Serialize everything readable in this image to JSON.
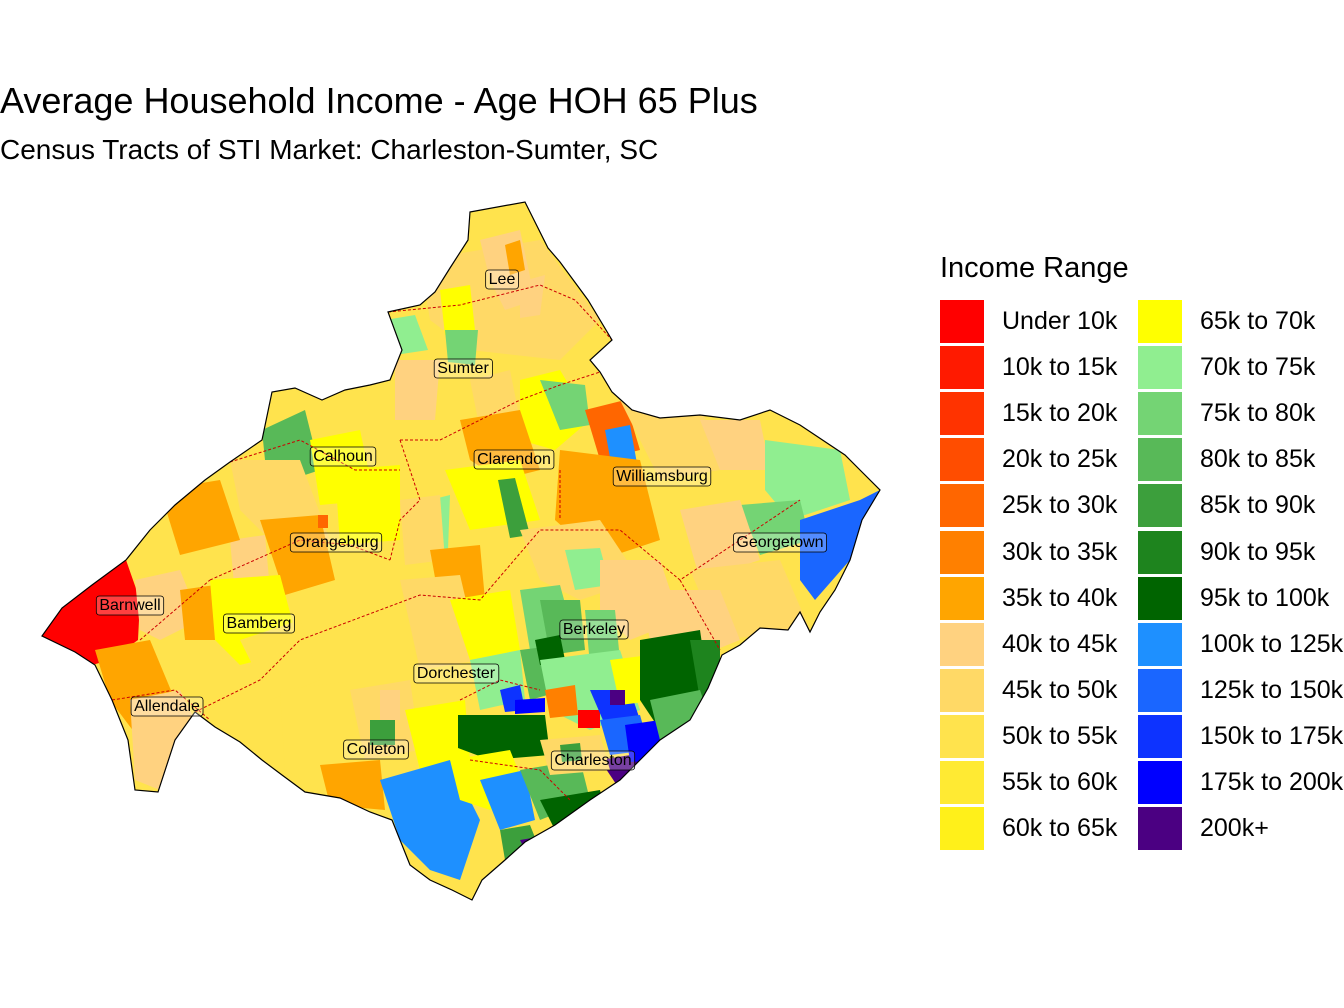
{
  "title": "Average Household Income - Age HOH 65 Plus",
  "subtitle": "Census Tracts of STI Market: Charleston-Sumter, SC",
  "legend": {
    "title": "Income Range",
    "items": [
      {
        "label": "Under 10k",
        "color": "#ff0000"
      },
      {
        "label": "10k to 15k",
        "color": "#ff1a00"
      },
      {
        "label": "15k to 20k",
        "color": "#ff3300"
      },
      {
        "label": "20k to 25k",
        "color": "#ff4d00"
      },
      {
        "label": "25k to 30k",
        "color": "#ff6600"
      },
      {
        "label": "30k to 35k",
        "color": "#ff8000"
      },
      {
        "label": "35k to 40k",
        "color": "#ffa500"
      },
      {
        "label": "40k to 45k",
        "color": "#ffd280"
      },
      {
        "label": "45k to 50k",
        "color": "#ffd966"
      },
      {
        "label": "50k to 55k",
        "color": "#ffe34d"
      },
      {
        "label": "55k to 60k",
        "color": "#ffea33"
      },
      {
        "label": "60k to 65k",
        "color": "#fff01a"
      },
      {
        "label": "65k to 70k",
        "color": "#ffff00"
      },
      {
        "label": "70k to 75k",
        "color": "#90ee90"
      },
      {
        "label": "75k to 80k",
        "color": "#74d474"
      },
      {
        "label": "80k to 85k",
        "color": "#58b958"
      },
      {
        "label": "85k to 90k",
        "color": "#3c9f3c"
      },
      {
        "label": "90k to 95k",
        "color": "#1e841e"
      },
      {
        "label": "95k to 100k",
        "color": "#006400"
      },
      {
        "label": "100k to 125k",
        "color": "#1e90ff"
      },
      {
        "label": "125k to 150k",
        "color": "#1a66ff"
      },
      {
        "label": "150k to 175k",
        "color": "#0d33ff"
      },
      {
        "label": "175k to 200k",
        "color": "#0000ff"
      },
      {
        "label": "200k+",
        "color": "#4b0082"
      }
    ]
  },
  "counties": [
    {
      "name": "Lee"
    },
    {
      "name": "Sumter"
    },
    {
      "name": "Calhoun"
    },
    {
      "name": "Clarendon"
    },
    {
      "name": "Williamsburg"
    },
    {
      "name": "Georgetown"
    },
    {
      "name": "Orangeburg"
    },
    {
      "name": "Barnwell"
    },
    {
      "name": "Bamberg"
    },
    {
      "name": "Berkeley"
    },
    {
      "name": "Dorchester"
    },
    {
      "name": "Allendale"
    },
    {
      "name": "Colleton"
    },
    {
      "name": "Charleston"
    }
  ]
}
